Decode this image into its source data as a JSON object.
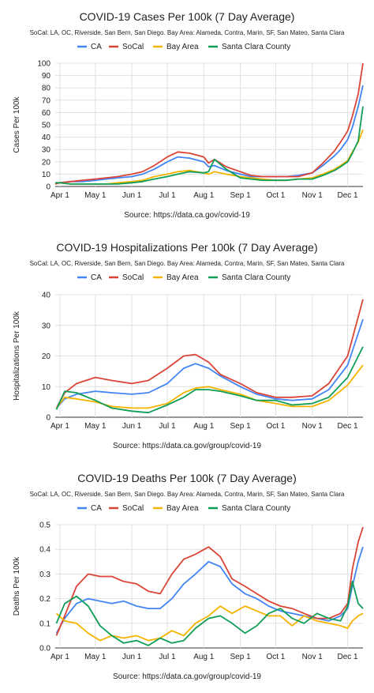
{
  "chart_data": [
    {
      "type": "line",
      "title": "COVID-19 Cases Per 100k (7 Day Average)",
      "subtitle": "SoCal: LA, OC, Riverside, San Bern, San Diego. Bay Area: Alameda, Contra, Marin, SF, San Mateo, Santa Clara",
      "ylabel": "Cases Per 100k",
      "xlabel": "",
      "source": "Source: https://data.ca.gov/covid-19",
      "ylim": [
        0,
        100
      ],
      "yticks": [
        0,
        10,
        20,
        30,
        40,
        50,
        60,
        70,
        80,
        90,
        100
      ],
      "grid": true,
      "legend": "top",
      "xlim": [
        "2020-03-28",
        "2020-12-14"
      ],
      "xticks": [
        {
          "date": "2020-04-01",
          "label": "Apr 1"
        },
        {
          "date": "2020-05-01",
          "label": "May 1"
        },
        {
          "date": "2020-06-01",
          "label": "Jun 1"
        },
        {
          "date": "2020-07-01",
          "label": "Jul 1"
        },
        {
          "date": "2020-08-01",
          "label": "Aug 1"
        },
        {
          "date": "2020-09-01",
          "label": "Sep 1"
        },
        {
          "date": "2020-10-01",
          "label": "Oct 1"
        },
        {
          "date": "2020-11-01",
          "label": "Nov 1"
        },
        {
          "date": "2020-12-01",
          "label": "Dec 1"
        }
      ],
      "x": [
        "2020-03-28",
        "2020-04-01",
        "2020-04-10",
        "2020-04-20",
        "2020-05-01",
        "2020-05-10",
        "2020-05-20",
        "2020-06-01",
        "2020-06-10",
        "2020-06-20",
        "2020-07-01",
        "2020-07-10",
        "2020-07-20",
        "2020-08-01",
        "2020-08-05",
        "2020-08-10",
        "2020-08-20",
        "2020-09-01",
        "2020-09-10",
        "2020-09-20",
        "2020-10-01",
        "2020-10-10",
        "2020-10-20",
        "2020-11-01",
        "2020-11-10",
        "2020-11-20",
        "2020-11-25",
        "2020-12-01",
        "2020-12-05",
        "2020-12-10",
        "2020-12-14"
      ],
      "series": [
        {
          "name": "CA",
          "color": "#4285f4",
          "values": [
            2,
            3,
            4,
            4,
            5,
            6,
            7,
            8,
            10,
            14,
            20,
            24,
            23,
            20,
            16,
            17,
            13,
            10,
            8,
            8,
            8,
            8,
            9,
            11,
            17,
            25,
            30,
            38,
            48,
            65,
            82
          ]
        },
        {
          "name": "SoCal",
          "color": "#db4437",
          "values": [
            2,
            3,
            4,
            5,
            6,
            7,
            8,
            10,
            12,
            17,
            24,
            28,
            27,
            24,
            19,
            22,
            16,
            12,
            9,
            8,
            8,
            8,
            8,
            11,
            19,
            29,
            36,
            45,
            57,
            75,
            100
          ]
        },
        {
          "name": "Bay Area",
          "color": "#f4b400",
          "values": [
            3,
            3,
            2,
            2,
            2,
            2,
            3,
            4,
            5,
            8,
            10,
            12,
            13,
            11,
            10,
            12,
            10,
            8,
            7,
            6,
            5,
            5,
            6,
            7,
            10,
            14,
            17,
            21,
            28,
            36,
            46
          ]
        },
        {
          "name": "Santa Clara County",
          "color": "#0f9d58",
          "values": [
            3,
            3,
            2,
            2,
            2,
            2,
            2,
            3,
            4,
            6,
            8,
            10,
            12,
            11,
            12,
            22,
            14,
            7,
            6,
            5,
            5,
            5,
            6,
            6,
            9,
            13,
            16,
            20,
            27,
            37,
            65
          ]
        }
      ]
    },
    {
      "type": "line",
      "title": "COVID-19 Hospitalizations Per 100k (7 Day Average)",
      "subtitle": "SoCal: LA, OC, Riverside, San Bern, San Diego. Bay Area: Alameda, Contra, Marin, SF, San Mateo, Santa Clara",
      "ylabel": "Hospitalizations Per 100k",
      "xlabel": "",
      "source": "Source: https://data.ca.gov/group/covid-19",
      "ylim": [
        0,
        40
      ],
      "yticks": [
        0,
        10,
        20,
        30,
        40
      ],
      "grid": true,
      "legend": "top",
      "xlim": [
        "2020-03-28",
        "2020-12-14"
      ],
      "xticks": [
        {
          "date": "2020-04-01",
          "label": "Apr 1"
        },
        {
          "date": "2020-05-01",
          "label": "May 1"
        },
        {
          "date": "2020-06-01",
          "label": "Jun 1"
        },
        {
          "date": "2020-07-01",
          "label": "Jul 1"
        },
        {
          "date": "2020-08-01",
          "label": "Aug 1"
        },
        {
          "date": "2020-09-01",
          "label": "Sep 1"
        },
        {
          "date": "2020-10-01",
          "label": "Oct 1"
        },
        {
          "date": "2020-11-01",
          "label": "Nov 1"
        },
        {
          "date": "2020-12-01",
          "label": "Dec 1"
        }
      ],
      "x": [
        "2020-03-29",
        "2020-04-05",
        "2020-04-15",
        "2020-05-01",
        "2020-05-15",
        "2020-06-01",
        "2020-06-15",
        "2020-07-01",
        "2020-07-15",
        "2020-07-25",
        "2020-08-05",
        "2020-08-15",
        "2020-09-01",
        "2020-09-15",
        "2020-10-01",
        "2020-10-15",
        "2020-11-01",
        "2020-11-15",
        "2020-12-01",
        "2020-12-14"
      ],
      "series": [
        {
          "name": "CA",
          "color": "#4285f4",
          "values": [
            3,
            6,
            7.5,
            8.5,
            8,
            7.5,
            8,
            11,
            16,
            17.5,
            16,
            13.5,
            10,
            7.5,
            6,
            5.5,
            6,
            9,
            17,
            32
          ]
        },
        {
          "name": "SoCal",
          "color": "#db4437",
          "values": [
            3,
            8,
            11,
            13,
            12,
            11,
            12,
            16,
            20,
            20.5,
            18,
            14,
            11,
            8,
            6.5,
            6.5,
            7,
            11,
            20,
            38.5
          ]
        },
        {
          "name": "Bay Area",
          "color": "#f4b400",
          "values": [
            3,
            6.5,
            6,
            5,
            3.5,
            3,
            3,
            4.5,
            8,
            9.5,
            10,
            9,
            7.5,
            5.5,
            4.5,
            3.5,
            3.5,
            5.5,
            10.5,
            17
          ]
        },
        {
          "name": "Santa Clara County",
          "color": "#0f9d58",
          "values": [
            2.5,
            8.5,
            8,
            5.5,
            3,
            2,
            1.5,
            4,
            6.5,
            9,
            9,
            8.5,
            7,
            5.5,
            5.5,
            4,
            4.5,
            6.5,
            13,
            23
          ]
        }
      ]
    },
    {
      "type": "line",
      "title": "COVID-19 Deaths Per 100k (7 Day Average)",
      "subtitle": "SoCal: LA, OC, Riverside, San Bern, San Diego. Bay Area: Alameda, Contra, Marin, SF, San Mateo, Santa Clara",
      "ylabel": "Deaths Per 100k",
      "xlabel": "",
      "source": "Source: https://data.ca.gov/group/covid-19",
      "ylim": [
        0,
        0.5
      ],
      "yticks": [
        0.0,
        0.1,
        0.2,
        0.3,
        0.4,
        0.5
      ],
      "ytick_labels": [
        "0.0",
        "0.1",
        "0.2",
        "0.3",
        "0.4",
        "0.5"
      ],
      "grid": true,
      "legend": "top",
      "xlim": [
        "2020-03-28",
        "2020-12-14"
      ],
      "xticks": [
        {
          "date": "2020-04-01",
          "label": "Apr 1"
        },
        {
          "date": "2020-05-01",
          "label": "May 1"
        },
        {
          "date": "2020-06-01",
          "label": "Jun 1"
        },
        {
          "date": "2020-07-01",
          "label": "Jul 1"
        },
        {
          "date": "2020-08-01",
          "label": "Aug 1"
        },
        {
          "date": "2020-09-01",
          "label": "Sep 1"
        },
        {
          "date": "2020-10-01",
          "label": "Oct 1"
        },
        {
          "date": "2020-11-01",
          "label": "Nov 1"
        },
        {
          "date": "2020-12-01",
          "label": "Dec 1"
        }
      ],
      "x": [
        "2020-03-29",
        "2020-04-05",
        "2020-04-15",
        "2020-04-25",
        "2020-05-05",
        "2020-05-15",
        "2020-05-25",
        "2020-06-05",
        "2020-06-15",
        "2020-06-25",
        "2020-07-05",
        "2020-07-15",
        "2020-07-25",
        "2020-08-05",
        "2020-08-15",
        "2020-08-25",
        "2020-09-05",
        "2020-09-15",
        "2020-09-25",
        "2020-10-05",
        "2020-10-15",
        "2020-10-25",
        "2020-11-05",
        "2020-11-15",
        "2020-11-25",
        "2020-12-01",
        "2020-12-05",
        "2020-12-10",
        "2020-12-14"
      ],
      "series": [
        {
          "name": "CA",
          "color": "#4285f4",
          "values": [
            0.06,
            0.12,
            0.18,
            0.2,
            0.19,
            0.18,
            0.19,
            0.17,
            0.16,
            0.16,
            0.2,
            0.26,
            0.3,
            0.35,
            0.33,
            0.26,
            0.22,
            0.2,
            0.17,
            0.15,
            0.14,
            0.13,
            0.12,
            0.11,
            0.13,
            0.16,
            0.25,
            0.35,
            0.41
          ]
        },
        {
          "name": "SoCal",
          "color": "#db4437",
          "values": [
            0.05,
            0.13,
            0.25,
            0.3,
            0.29,
            0.29,
            0.27,
            0.26,
            0.23,
            0.22,
            0.3,
            0.36,
            0.38,
            0.41,
            0.37,
            0.28,
            0.25,
            0.22,
            0.19,
            0.17,
            0.16,
            0.14,
            0.12,
            0.12,
            0.14,
            0.18,
            0.32,
            0.43,
            0.49
          ]
        },
        {
          "name": "Bay Area",
          "color": "#f4b400",
          "values": [
            0.14,
            0.11,
            0.1,
            0.06,
            0.03,
            0.05,
            0.04,
            0.05,
            0.03,
            0.04,
            0.07,
            0.05,
            0.1,
            0.13,
            0.17,
            0.14,
            0.17,
            0.15,
            0.13,
            0.13,
            0.09,
            0.13,
            0.11,
            0.1,
            0.09,
            0.08,
            0.11,
            0.13,
            0.14
          ]
        },
        {
          "name": "Santa Clara County",
          "color": "#0f9d58",
          "values": [
            0.1,
            0.18,
            0.21,
            0.17,
            0.09,
            0.05,
            0.02,
            0.03,
            0.01,
            0.04,
            0.02,
            0.03,
            0.08,
            0.12,
            0.13,
            0.1,
            0.06,
            0.09,
            0.14,
            0.16,
            0.12,
            0.1,
            0.14,
            0.12,
            0.11,
            0.17,
            0.27,
            0.18,
            0.16
          ]
        }
      ]
    }
  ]
}
